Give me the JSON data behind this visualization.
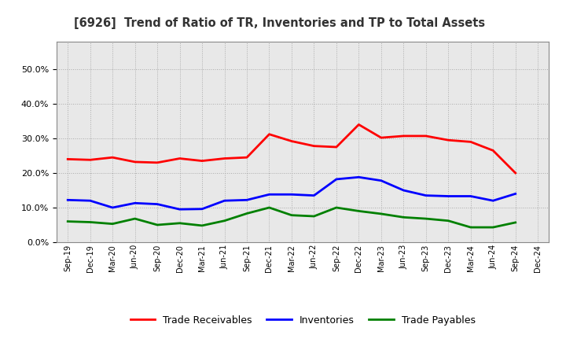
{
  "title": "[6926]  Trend of Ratio of TR, Inventories and TP to Total Assets",
  "x_labels": [
    "Sep-19",
    "Dec-19",
    "Mar-20",
    "Jun-20",
    "Sep-20",
    "Dec-20",
    "Mar-21",
    "Jun-21",
    "Sep-21",
    "Dec-21",
    "Mar-22",
    "Jun-22",
    "Sep-22",
    "Dec-22",
    "Mar-23",
    "Jun-23",
    "Sep-23",
    "Dec-23",
    "Mar-24",
    "Jun-24",
    "Sep-24",
    "Dec-24"
  ],
  "trade_receivables": [
    0.24,
    0.238,
    0.245,
    0.232,
    0.23,
    0.242,
    0.235,
    0.242,
    0.245,
    0.312,
    0.292,
    0.278,
    0.275,
    0.34,
    0.302,
    0.307,
    0.307,
    0.295,
    0.29,
    0.265,
    0.2,
    null
  ],
  "inventories": [
    0.122,
    0.12,
    0.1,
    0.113,
    0.11,
    0.095,
    0.096,
    0.12,
    0.122,
    0.138,
    0.138,
    0.135,
    0.182,
    0.188,
    0.178,
    0.15,
    0.135,
    0.133,
    0.133,
    0.12,
    0.14,
    null
  ],
  "trade_payables": [
    0.06,
    0.058,
    0.053,
    0.068,
    0.05,
    0.055,
    0.048,
    0.062,
    0.083,
    0.1,
    0.078,
    0.075,
    0.1,
    0.09,
    0.082,
    0.072,
    0.068,
    0.062,
    0.043,
    0.043,
    0.057,
    null
  ],
  "tr_color": "#ff0000",
  "inv_color": "#0000ff",
  "tp_color": "#008000",
  "ylim": [
    0.0,
    0.58
  ],
  "yticks": [
    0.0,
    0.1,
    0.2,
    0.3,
    0.4,
    0.5
  ],
  "background_color": "#ffffff",
  "plot_bg_color": "#e8e8e8",
  "grid_color": "#aaaaaa",
  "legend_labels": [
    "Trade Receivables",
    "Inventories",
    "Trade Payables"
  ]
}
